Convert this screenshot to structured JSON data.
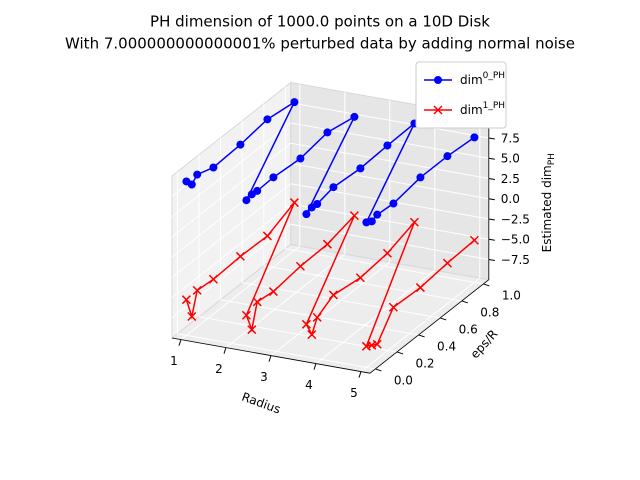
{
  "chart_data": {
    "type": "line3d",
    "title": "PH dimension of 1000.0 points on a 10D Disk",
    "subtitle": "With 7.000000000000001% perturbed data by adding normal noise",
    "xlabel": "Radius",
    "ylabel": "eps/R",
    "zlabel": "Estimated dim_PH",
    "xlim": [
      0.8,
      5.2
    ],
    "ylim": [
      -0.05,
      1.05
    ],
    "zlim": [
      -10,
      10
    ],
    "xticks": [
      1,
      2,
      3,
      4,
      5
    ],
    "yticks": [
      {
        "value": 0,
        "label": "0.0"
      },
      {
        "value": 0.2,
        "label": "0.2"
      },
      {
        "value": 0.4,
        "label": "0.4"
      },
      {
        "value": 0.6,
        "label": "0.6"
      },
      {
        "value": 0.8,
        "label": "0.8"
      },
      {
        "value": 1,
        "label": "1.0"
      }
    ],
    "zticks": [
      {
        "value": -7.5,
        "label": "−7.5"
      },
      {
        "value": -5,
        "label": "−5.0"
      },
      {
        "value": -2.5,
        "label": "−2.5"
      },
      {
        "value": 0,
        "label": "0.0"
      },
      2.5,
      {
        "value": 5,
        "label": "5.0"
      },
      7.5
    ],
    "grid": true,
    "legend": "upper right",
    "series": [
      {
        "name": "dim^0_PH",
        "color": "#0000ff",
        "marker": "o",
        "x": [
          1,
          1,
          1,
          1,
          1,
          1,
          1,
          2.3333333333333335,
          2.3333333333333335,
          2.3333333333333335,
          2.3333333333333335,
          2.3333333333333335,
          2.3333333333333335,
          2.3333333333333335,
          3.666666666666667,
          3.666666666666667,
          3.666666666666667,
          3.666666666666667,
          3.666666666666667,
          3.666666666666667,
          3.666666666666667,
          5,
          5,
          5,
          5,
          5,
          5,
          5
        ],
        "y": [
          0,
          0.05,
          0.1,
          0.25,
          0.5,
          0.75,
          1,
          0,
          0.05,
          0.1,
          0.25,
          0.5,
          0.75,
          1,
          0,
          0.05,
          0.1,
          0.25,
          0.5,
          0.75,
          1,
          0,
          0.05,
          0.1,
          0.25,
          0.5,
          0.75,
          1
        ],
        "values": [
          9.0,
          8.1,
          8.8,
          8.1,
          8.3,
          8.8,
          8.3,
          8.0,
          8.2,
          8.1,
          8.2,
          7.9,
          8.5,
          7.8,
          7.6,
          7.9,
          7.8,
          8.3,
          8.0,
          8.2,
          8.3,
          7.9,
          7.5,
          7.8,
          7.6,
          8.2,
          8.2,
          7.9
        ]
      },
      {
        "name": "dim^1_PH",
        "color": "#ff0000",
        "marker": "x",
        "x": [
          1,
          1,
          1,
          1,
          1,
          1,
          1,
          2.3333333333333335,
          2.3333333333333335,
          2.3333333333333335,
          2.3333333333333335,
          2.3333333333333335,
          2.3333333333333335,
          2.3333333333333335,
          3.666666666666667,
          3.666666666666667,
          3.666666666666667,
          3.666666666666667,
          3.666666666666667,
          3.666666666666667,
          3.666666666666667,
          5,
          5,
          5,
          5,
          5,
          5,
          5
        ],
        "y": [
          0,
          0.05,
          0.1,
          0.25,
          0.5,
          0.75,
          1,
          0,
          0.05,
          0.1,
          0.25,
          0.5,
          0.75,
          1,
          0,
          0.05,
          0.1,
          0.25,
          0.5,
          0.75,
          1,
          0,
          0.05,
          0.1,
          0.25,
          0.5,
          0.75,
          1
        ],
        "values": [
          -5.6,
          -8.2,
          -5.5,
          -5.7,
          -5.5,
          -5.6,
          -4.1,
          -6.2,
          -8.5,
          -5.6,
          -5.9,
          -5.4,
          -5.3,
          -4.4,
          -6.0,
          -7.8,
          -6.2,
          -5.0,
          -5.5,
          -5.1,
          -3.9,
          -7.4,
          -7.8,
          -8.2,
          -5.2,
          -5.4,
          -5.0,
          -4.8
        ]
      }
    ]
  }
}
